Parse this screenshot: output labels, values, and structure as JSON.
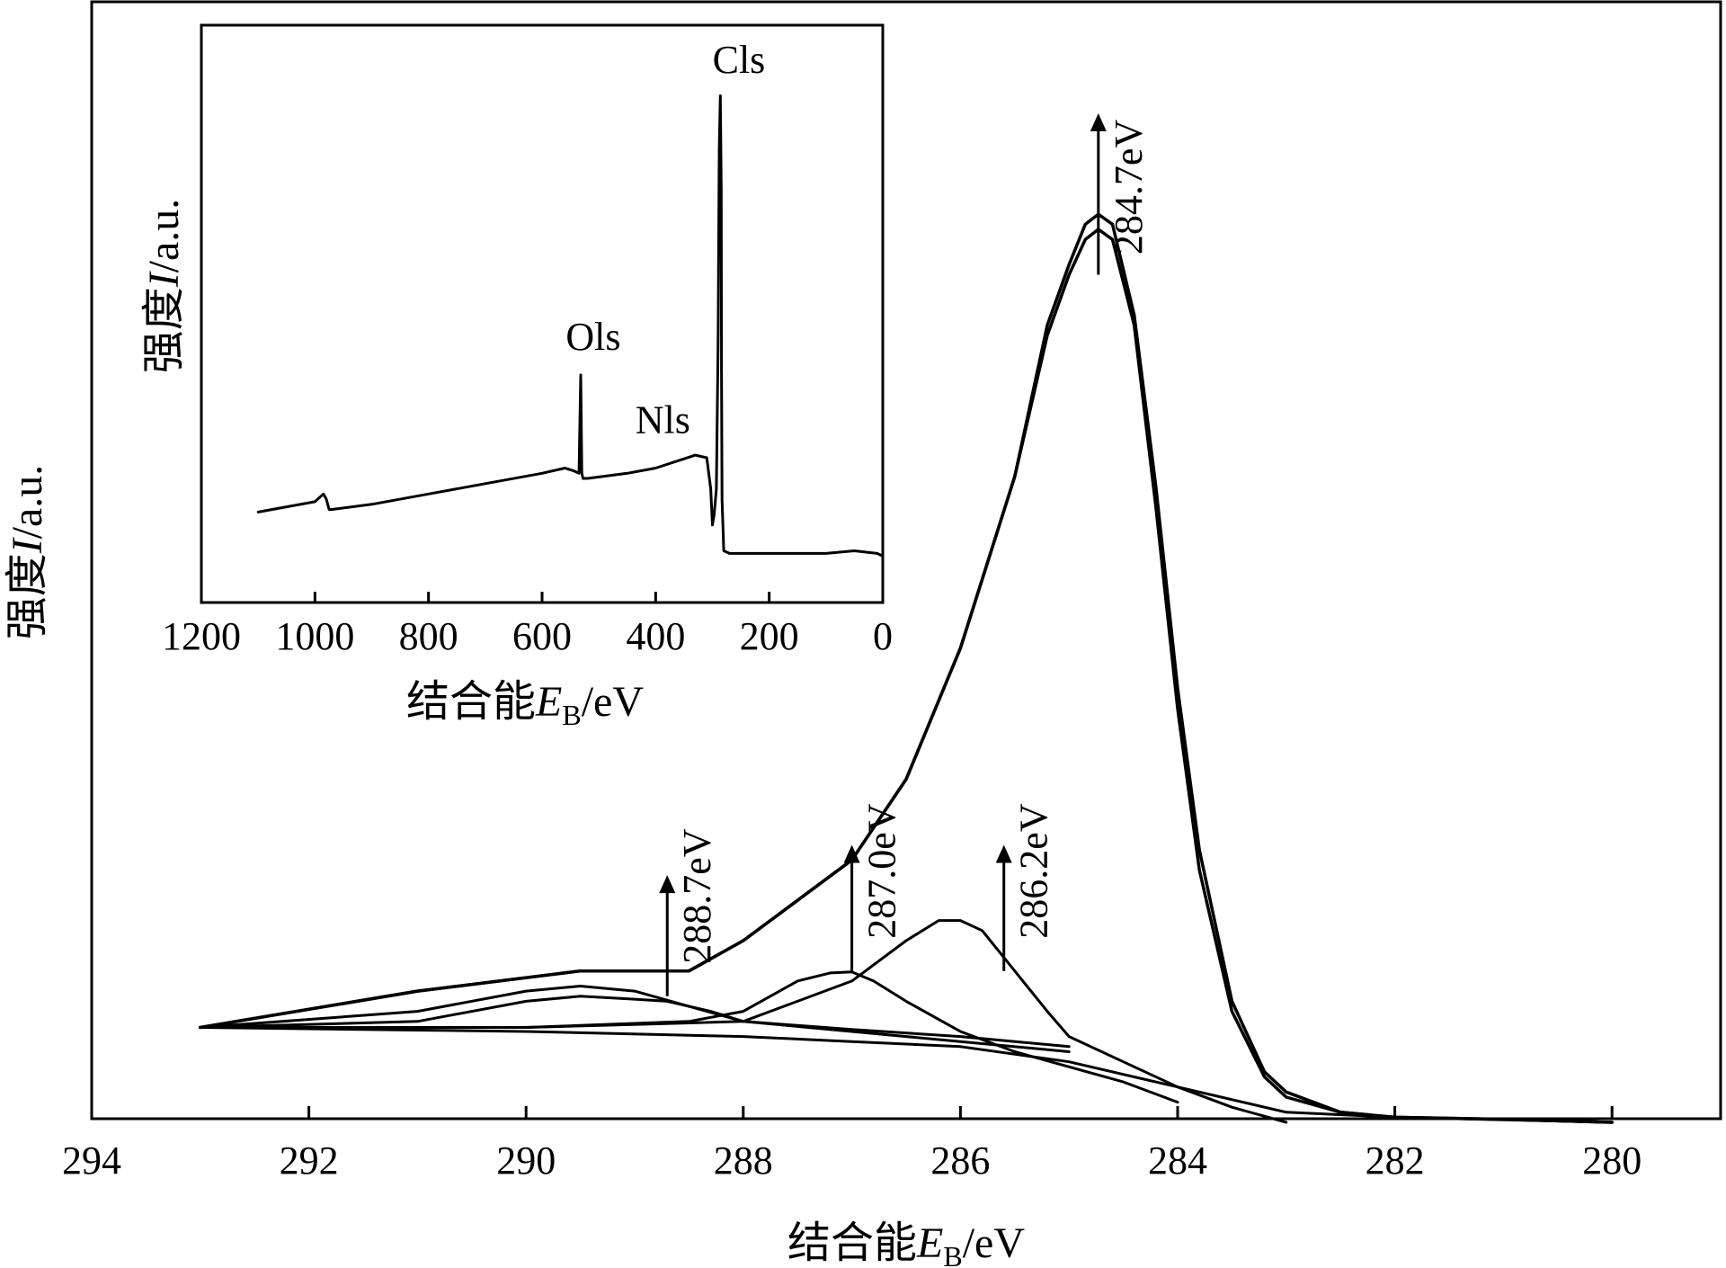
{
  "chart_data": [
    {
      "type": "line",
      "panel": "main",
      "xlabel": "结合能",
      "xlabel_var": "E",
      "xlabel_sub": "B",
      "xlabel_unit": "/eV",
      "ylabel": "强度",
      "ylabel_var": "I",
      "ylabel_unit": "/a.u.",
      "xlim": [
        294,
        279
      ],
      "ylim": [
        0,
        1
      ],
      "x_reversed": true,
      "x_ticks": [
        "294",
        "292",
        "290",
        "288",
        "286",
        "284",
        "282",
        "280"
      ],
      "x_tick_values": [
        294,
        292,
        290,
        288,
        286,
        284,
        282,
        280
      ],
      "series": [
        {
          "role": "envelope-measured",
          "x": [
            293.0,
            291.0,
            289.5,
            288.5,
            288.0,
            287.5,
            287.0,
            286.5,
            286.0,
            285.5,
            285.2,
            285.0,
            284.85,
            284.73,
            284.6,
            284.4,
            284.2,
            284.0,
            283.8,
            283.5,
            283.2,
            283.0,
            282.5,
            282.0,
            281.0,
            280.0
          ],
          "y": [
            0.094,
            0.13,
            0.15,
            0.15,
            0.18,
            0.22,
            0.26,
            0.34,
            0.47,
            0.64,
            0.79,
            0.85,
            0.89,
            0.9,
            0.89,
            0.8,
            0.63,
            0.43,
            0.27,
            0.12,
            0.05,
            0.03,
            0.01,
            0.005,
            0.003,
            0.0
          ]
        },
        {
          "role": "envelope-fit",
          "x": [
            293.0,
            291.0,
            289.5,
            288.5,
            288.0,
            287.5,
            287.0,
            286.5,
            286.0,
            285.5,
            285.2,
            285.0,
            284.85,
            284.73,
            284.6,
            284.4,
            284.2,
            284.0,
            283.8,
            283.5,
            283.2,
            283.0,
            282.5,
            282.0,
            281.0,
            280.0
          ],
          "y": [
            0.094,
            0.13,
            0.15,
            0.15,
            0.18,
            0.22,
            0.26,
            0.34,
            0.47,
            0.64,
            0.78,
            0.84,
            0.875,
            0.885,
            0.875,
            0.79,
            0.61,
            0.41,
            0.25,
            0.11,
            0.045,
            0.025,
            0.01,
            0.005,
            0.003,
            0.0
          ]
        },
        {
          "role": "component",
          "peak": 286.2,
          "x": [
            293.0,
            290.0,
            288.0,
            287.0,
            286.5,
            286.2,
            286.0,
            285.8,
            285.5,
            285.2,
            285.0,
            284.5,
            284.0,
            283.5,
            283.0
          ],
          "y": [
            0.094,
            0.094,
            0.1,
            0.14,
            0.18,
            0.2,
            0.2,
            0.19,
            0.15,
            0.11,
            0.085,
            0.06,
            0.035,
            0.015,
            0.0
          ]
        },
        {
          "role": "component",
          "peak": 287.0,
          "x": [
            293.0,
            290.0,
            288.5,
            288.0,
            287.5,
            287.2,
            287.0,
            286.8,
            286.5,
            286.0,
            285.5,
            285.0,
            284.5,
            284.0
          ],
          "y": [
            0.094,
            0.094,
            0.1,
            0.11,
            0.14,
            0.148,
            0.149,
            0.14,
            0.12,
            0.09,
            0.07,
            0.055,
            0.04,
            0.02
          ]
        },
        {
          "role": "component",
          "peak": 288.7,
          "x": [
            293.0,
            291.0,
            290.0,
            289.5,
            289.0,
            288.7,
            288.3,
            288.0,
            287.5,
            287.0,
            286.0,
            285.0
          ],
          "y": [
            0.094,
            0.1,
            0.12,
            0.125,
            0.122,
            0.12,
            0.11,
            0.1,
            0.095,
            0.09,
            0.08,
            0.07
          ]
        },
        {
          "role": "component",
          "peak": 289.5,
          "x": [
            293.0,
            291.0,
            290.0,
            289.5,
            289.0,
            288.5,
            288.0,
            287.0,
            286.0,
            285.0
          ],
          "y": [
            0.094,
            0.11,
            0.13,
            0.135,
            0.13,
            0.115,
            0.1,
            0.092,
            0.085,
            0.075
          ]
        },
        {
          "role": "baseline",
          "x": [
            293.0,
            290.0,
            288.0,
            287.0,
            286.0,
            285.0,
            284.0,
            283.0,
            282.0,
            280.0
          ],
          "y": [
            0.094,
            0.09,
            0.085,
            0.08,
            0.075,
            0.06,
            0.035,
            0.01,
            0.005,
            0.0
          ]
        }
      ],
      "annotations": [
        {
          "text": "284.7eV",
          "x": 284.73,
          "arrow_from": 0.84,
          "arrow_to": 1.0
        },
        {
          "text": "287.0eV",
          "x": 287.0,
          "arrow_from": 0.15,
          "arrow_to": 0.275
        },
        {
          "text": "286.2eV",
          "x": 285.6,
          "arrow_from": 0.15,
          "arrow_to": 0.275
        },
        {
          "text": "288.7eV",
          "x": 288.7,
          "arrow_from": 0.125,
          "arrow_to": 0.245
        }
      ]
    },
    {
      "type": "line",
      "panel": "inset",
      "xlabel": "结合能",
      "xlabel_var": "E",
      "xlabel_sub": "B",
      "xlabel_unit": "/eV",
      "ylabel": "强度",
      "ylabel_var": "I",
      "ylabel_unit": "/a.u.",
      "xlim": [
        1200,
        0
      ],
      "ylim": [
        0,
        1
      ],
      "x_reversed": true,
      "x_ticks": [
        "1200",
        "1000",
        "800",
        "600",
        "400",
        "200",
        "0"
      ],
      "x_tick_values": [
        1200,
        1000,
        800,
        600,
        400,
        200,
        0
      ],
      "series": [
        {
          "role": "survey",
          "x": [
            1100,
            1050,
            1000,
            985,
            980,
            975,
            970,
            900,
            800,
            700,
            600,
            560,
            545,
            535,
            532,
            530,
            528,
            520,
            450,
            400,
            330,
            310,
            303,
            300,
            297,
            293,
            290,
            288,
            286,
            284.5,
            284,
            283,
            280,
            270,
            250,
            200,
            100,
            50,
            10,
            0
          ],
          "y": [
            0.175,
            0.185,
            0.195,
            0.21,
            0.2,
            0.18,
            0.18,
            0.19,
            0.21,
            0.23,
            0.25,
            0.26,
            0.255,
            0.25,
            0.44,
            0.25,
            0.24,
            0.24,
            0.25,
            0.26,
            0.285,
            0.28,
            0.22,
            0.15,
            0.17,
            0.22,
            0.5,
            0.88,
            0.98,
            0.8,
            0.45,
            0.2,
            0.1,
            0.095,
            0.095,
            0.095,
            0.095,
            0.1,
            0.095,
            0.09
          ]
        }
      ],
      "annotations": [
        {
          "text": "Cls",
          "x": 285,
          "y": 1.0
        },
        {
          "text": "Ols",
          "x": 532,
          "y": 0.44
        },
        {
          "text": "Nls",
          "x": 400,
          "y": 0.3
        }
      ]
    }
  ]
}
